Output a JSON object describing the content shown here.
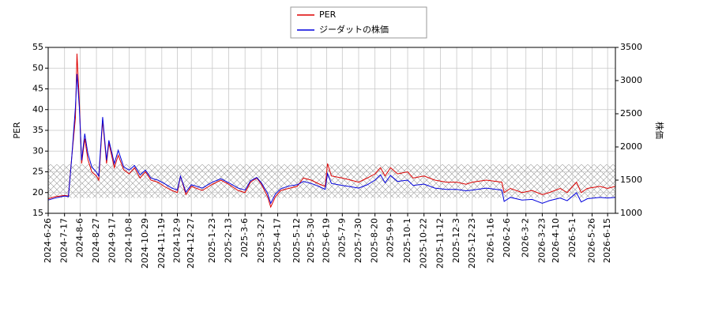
{
  "chart_data": {
    "type": "line",
    "y_label": "PER",
    "y2_label": "株価",
    "x": [
      "2024-06-26",
      "2024-07-05",
      "2024-07-17",
      "2024-07-22",
      "2024-07-26",
      "2024-07-31",
      "2024-08-02",
      "2024-08-05",
      "2024-08-08",
      "2024-08-12",
      "2024-08-16",
      "2024-08-21",
      "2024-08-27",
      "2024-08-30",
      "2024-09-04",
      "2024-09-09",
      "2024-09-12",
      "2024-09-19",
      "2024-09-24",
      "2024-10-01",
      "2024-10-08",
      "2024-10-15",
      "2024-10-22",
      "2024-10-29",
      "2024-11-05",
      "2024-11-14",
      "2024-11-22",
      "2024-12-02",
      "2024-12-09",
      "2024-12-13",
      "2024-12-20",
      "2024-12-27",
      "2025-01-10",
      "2025-01-23",
      "2025-02-03",
      "2025-02-13",
      "2025-02-25",
      "2025-03-06",
      "2025-03-13",
      "2025-03-21",
      "2025-03-27",
      "2025-04-04",
      "2025-04-08",
      "2025-04-14",
      "2025-04-21",
      "2025-05-01",
      "2025-05-12",
      "2025-05-20",
      "2025-05-30",
      "2025-06-10",
      "2025-06-17",
      "2025-06-20",
      "2025-06-25",
      "2025-07-09",
      "2025-07-20",
      "2025-07-30",
      "2025-08-10",
      "2025-08-20",
      "2025-08-27",
      "2025-09-02",
      "2025-09-09",
      "2025-09-18",
      "2025-10-01",
      "2025-10-08",
      "2025-10-22",
      "2025-11-05",
      "2025-11-20",
      "2025-12-03",
      "2025-12-15",
      "2025-12-23",
      "2026-01-10",
      "2026-01-30",
      "2026-02-02",
      "2026-02-10",
      "2026-02-25",
      "2026-03-10",
      "2026-03-23",
      "2026-04-01",
      "2026-04-15",
      "2026-04-24",
      "2026-05-06",
      "2026-05-12",
      "2026-05-20",
      "2026-06-05",
      "2026-06-15",
      "2026-06-25"
    ],
    "series": [
      {
        "name": "PER",
        "color": "#dd0000",
        "axis": "y",
        "values": [
          18.5,
          19,
          19.3,
          19.2,
          28,
          38,
          53.5,
          42,
          27,
          33,
          28,
          25,
          24,
          23,
          37.5,
          27,
          32,
          26,
          29,
          25.5,
          24.5,
          26,
          23.5,
          25,
          23,
          22.5,
          21.5,
          20.5,
          20,
          24,
          19.5,
          21.5,
          20.5,
          22,
          23,
          22,
          20.5,
          20,
          22.5,
          23.5,
          22,
          19,
          16.5,
          19,
          20.5,
          21,
          21.5,
          23.5,
          23,
          22,
          21.5,
          27,
          24,
          23.5,
          23,
          22.5,
          23.5,
          24.5,
          26,
          24,
          26,
          24.5,
          25,
          23.5,
          24,
          23,
          22.5,
          22.5,
          22,
          22.5,
          23,
          22.5,
          20,
          21,
          20,
          20.5,
          19.5,
          20,
          21,
          20,
          22.5,
          20,
          21,
          21.5,
          21,
          21.5
        ]
      },
      {
        "name": "ジーダットの株価",
        "color": "#0000dd",
        "axis": "y2",
        "values": [
          1200,
          1230,
          1260,
          1250,
          1800,
          2600,
          3100,
          2600,
          1800,
          2200,
          1900,
          1700,
          1620,
          1560,
          2450,
          1800,
          2100,
          1750,
          1950,
          1700,
          1650,
          1720,
          1580,
          1650,
          1530,
          1500,
          1450,
          1380,
          1350,
          1560,
          1320,
          1430,
          1380,
          1470,
          1520,
          1460,
          1380,
          1350,
          1490,
          1540,
          1460,
          1300,
          1150,
          1290,
          1370,
          1410,
          1430,
          1480,
          1450,
          1400,
          1360,
          1600,
          1450,
          1420,
          1400,
          1380,
          1430,
          1500,
          1580,
          1460,
          1570,
          1480,
          1500,
          1420,
          1440,
          1380,
          1360,
          1360,
          1340,
          1350,
          1380,
          1350,
          1180,
          1240,
          1200,
          1210,
          1150,
          1190,
          1230,
          1190,
          1310,
          1170,
          1220,
          1240,
          1230,
          1240
        ]
      }
    ],
    "band": [
      18.7,
      26.8
    ],
    "xlim": [
      "2024-06-26",
      "2026-06-25"
    ],
    "xticks": [
      {
        "value": "2024-06-26",
        "label": "2024-6-26"
      },
      {
        "value": "2024-07-17",
        "label": "2024-7-17"
      },
      {
        "value": "2024-08-06",
        "label": "2024-8-6"
      },
      {
        "value": "2024-08-27",
        "label": "2024-8-27"
      },
      {
        "value": "2024-09-17",
        "label": "2024-9-17"
      },
      {
        "value": "2024-10-08",
        "label": "2024-10-8"
      },
      {
        "value": "2024-10-29",
        "label": "2024-10-29"
      },
      {
        "value": "2024-11-19",
        "label": "2024-11-19"
      },
      {
        "value": "2024-12-09",
        "label": "2024-12-9"
      },
      {
        "value": "2024-12-27",
        "label": "2024-12-27"
      },
      {
        "value": "2025-01-23",
        "label": "2025-1-23"
      },
      {
        "value": "2025-02-13",
        "label": "2025-2-13"
      },
      {
        "value": "2025-03-06",
        "label": "2025-3-6"
      },
      {
        "value": "2025-03-27",
        "label": "2025-3-27"
      },
      {
        "value": "2025-04-17",
        "label": "2025-4-17"
      },
      {
        "value": "2025-05-12",
        "label": "2025-5-12"
      },
      {
        "value": "2025-05-30",
        "label": "2025-5-30"
      },
      {
        "value": "2025-06-19",
        "label": "2025-6-19"
      },
      {
        "value": "2025-07-09",
        "label": "2025-7-9"
      },
      {
        "value": "2025-07-30",
        "label": "2025-7-30"
      },
      {
        "value": "2025-08-20",
        "label": "2025-8-20"
      },
      {
        "value": "2025-09-09",
        "label": "2025-9-9"
      },
      {
        "value": "2025-10-01",
        "label": "2025-10-1"
      },
      {
        "value": "2025-10-22",
        "label": "2025-10-22"
      },
      {
        "value": "2025-11-12",
        "label": "2025-11-12"
      },
      {
        "value": "2025-12-03",
        "label": "2025-12-3"
      },
      {
        "value": "2025-12-23",
        "label": "2025-12-23"
      },
      {
        "value": "2026-01-16",
        "label": "2026-1-16"
      },
      {
        "value": "2026-02-06",
        "label": "2026-2-6"
      },
      {
        "value": "2026-03-02",
        "label": "2026-3-2"
      },
      {
        "value": "2026-03-23",
        "label": "2026-3-23"
      },
      {
        "value": "2026-04-10",
        "label": "2026-4-10"
      },
      {
        "value": "2026-05-01",
        "label": "2026-5-1"
      },
      {
        "value": "2026-05-26",
        "label": "2026-5-26"
      },
      {
        "value": "2026-06-15",
        "label": "2026-6-15"
      }
    ],
    "ylim": [
      15,
      55
    ],
    "yticks": [
      15,
      20,
      25,
      30,
      35,
      40,
      45,
      50,
      55
    ],
    "y2lim": [
      1000,
      3500
    ],
    "y2ticks": [
      1000,
      1500,
      2000,
      2500,
      3000,
      3500
    ],
    "grid": true
  }
}
